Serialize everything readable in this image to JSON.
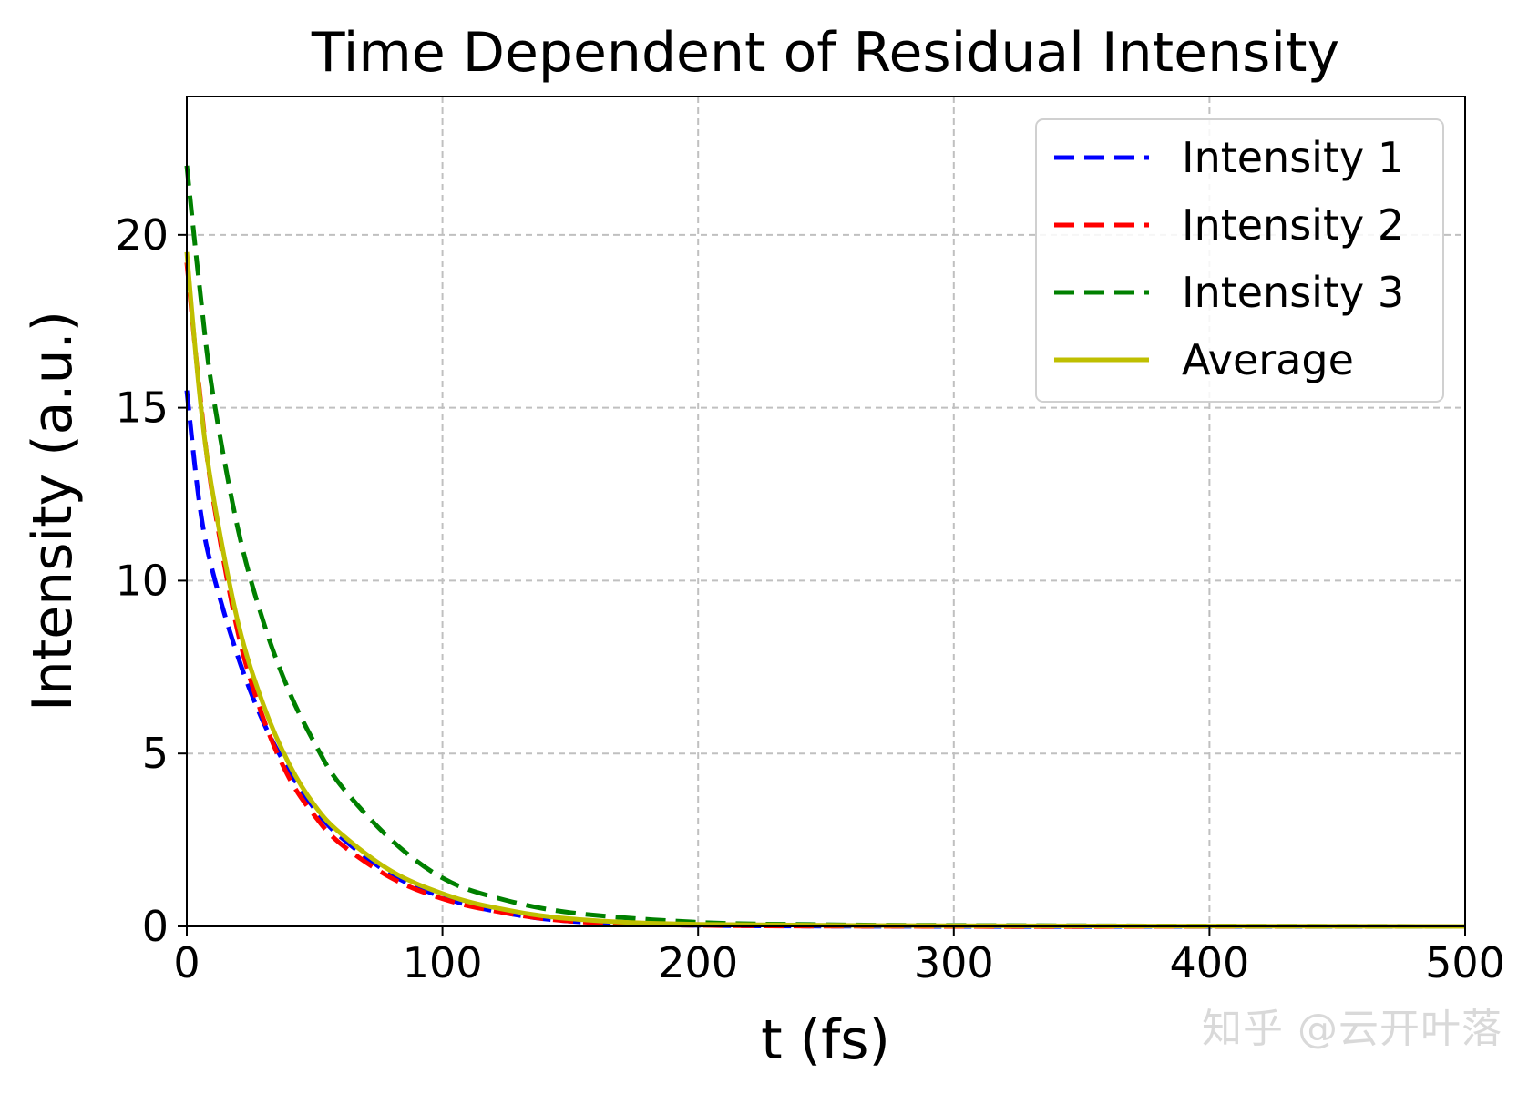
{
  "chart_data": {
    "type": "line",
    "title": "Time Dependent of Residual Intensity",
    "xlabel": "t (fs)",
    "ylabel": "Intensity (a.u.)",
    "xlim": [
      0,
      500
    ],
    "ylim": [
      0,
      24
    ],
    "xticks": [
      0,
      100,
      200,
      300,
      400,
      500
    ],
    "yticks": [
      0,
      5,
      10,
      15,
      20
    ],
    "grid": true,
    "legend_position": "top-right",
    "series": [
      {
        "name": "Intensity 1",
        "color": "#0000ff",
        "style": "dashed",
        "x": [
          0,
          5,
          10,
          20,
          30,
          40,
          50,
          60,
          80,
          100,
          120,
          150,
          200,
          300,
          400,
          500
        ],
        "y": [
          15.5,
          12.2,
          10.3,
          7.8,
          5.9,
          4.5,
          3.4,
          2.6,
          1.5,
          0.85,
          0.45,
          0.15,
          0.03,
          0.0,
          0.0,
          0.0
        ]
      },
      {
        "name": "Intensity 2",
        "color": "#ff0000",
        "style": "dashed",
        "x": [
          0,
          5,
          10,
          20,
          30,
          40,
          50,
          60,
          80,
          100,
          120,
          150,
          200,
          300,
          400,
          500
        ],
        "y": [
          19.2,
          15.5,
          12.5,
          8.5,
          6.0,
          4.3,
          3.2,
          2.4,
          1.4,
          0.8,
          0.45,
          0.15,
          0.03,
          0.0,
          0.0,
          0.0
        ]
      },
      {
        "name": "Intensity 3",
        "color": "#008000",
        "style": "dashed",
        "x": [
          0,
          5,
          10,
          20,
          30,
          40,
          50,
          60,
          80,
          100,
          120,
          150,
          200,
          250,
          300,
          400,
          500
        ],
        "y": [
          22.0,
          18.5,
          15.5,
          11.5,
          8.8,
          6.8,
          5.3,
          4.1,
          2.5,
          1.4,
          0.85,
          0.4,
          0.12,
          0.05,
          0.03,
          0.01,
          0.0
        ]
      },
      {
        "name": "Average",
        "color": "#bfbf00",
        "style": "solid",
        "x": [
          0,
          5,
          10,
          20,
          30,
          40,
          50,
          60,
          80,
          100,
          120,
          150,
          200,
          300,
          400,
          500
        ],
        "y": [
          19.5,
          15.4,
          12.6,
          8.8,
          6.4,
          4.7,
          3.5,
          2.7,
          1.6,
          0.95,
          0.55,
          0.22,
          0.06,
          0.02,
          0.01,
          0.0
        ]
      }
    ]
  },
  "watermark": "知乎 @云开叶落"
}
